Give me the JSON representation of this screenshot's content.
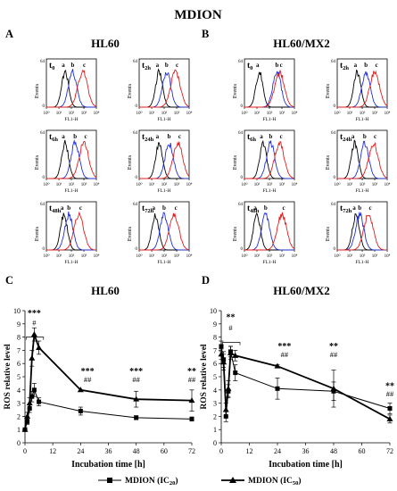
{
  "figure": {
    "title": "MDION",
    "panel_letters": [
      "A",
      "B",
      "C",
      "D"
    ],
    "panel_titles": [
      "HL60",
      "HL60/MX2",
      "HL60",
      "HL60/MX2"
    ],
    "colors": {
      "a": "#000000",
      "b": "#1f2fd6",
      "c": "#e21b1b"
    }
  },
  "chart_data": [
    {
      "id": "A",
      "type": "histogram",
      "title": "HL60",
      "xlabel": "FL1-H",
      "ylabel": "Events",
      "x_scale": "log",
      "x_ticks": [
        "10⁰",
        "10¹",
        "10²",
        "10³",
        "10⁴"
      ],
      "y_ticks": [
        "0",
        "64"
      ],
      "series_labels": [
        "a",
        "b",
        "c"
      ],
      "series_colors": [
        "#000000",
        "#1f2fd6",
        "#e21b1b"
      ],
      "subplots": [
        {
          "timepoint": "t",
          "sub": "0",
          "peaks_log10": [
            1.5,
            2.1,
            2.9
          ]
        },
        {
          "timepoint": "t",
          "sub": "2h",
          "peaks_log10": [
            1.6,
            2.2,
            2.9
          ]
        },
        {
          "timepoint": "t",
          "sub": "6h",
          "peaks_log10": [
            1.5,
            2.3,
            3.0
          ]
        },
        {
          "timepoint": "t",
          "sub": "24h",
          "peaks_log10": [
            1.6,
            2.4,
            3.1
          ]
        },
        {
          "timepoint": "t",
          "sub": "48h",
          "peaks_log10": [
            1.4,
            1.8,
            2.6
          ]
        },
        {
          "timepoint": "t",
          "sub": "72h",
          "peaks_log10": [
            1.3,
            2.0,
            2.8
          ]
        }
      ]
    },
    {
      "id": "B",
      "type": "histogram",
      "title": "HL60/MX2",
      "xlabel": "FL1-H",
      "ylabel": "Events",
      "x_scale": "log",
      "x_ticks": [
        "10⁰",
        "10¹",
        "10²",
        "10³",
        "10⁴"
      ],
      "y_ticks": [
        "0",
        "64"
      ],
      "series_labels": [
        "a",
        "b",
        "c"
      ],
      "series_colors": [
        "#000000",
        "#1f2fd6",
        "#e21b1b"
      ],
      "subplots": [
        {
          "timepoint": "t",
          "sub": "0",
          "peaks_log10": [
            1.2,
            2.6,
            2.8
          ]
        },
        {
          "timepoint": "t",
          "sub": "2h",
          "peaks_log10": [
            1.6,
            2.3,
            3.0
          ]
        },
        {
          "timepoint": "t",
          "sub": "6h",
          "peaks_log10": [
            1.5,
            2.1,
            2.8
          ]
        },
        {
          "timepoint": "t",
          "sub": "24h",
          "peaks_log10": [
            1.4,
            2.2,
            2.9
          ]
        },
        {
          "timepoint": "t",
          "sub": "48h",
          "peaks_log10": [
            1.0,
            1.7,
            3.0
          ]
        },
        {
          "timepoint": "t",
          "sub": "72h",
          "peaks_log10": [
            1.5,
            1.8,
            2.5
          ]
        }
      ]
    },
    {
      "id": "C",
      "type": "line",
      "title": "HL60",
      "xlabel": "Incubation time [h]",
      "ylabel": "ROS relative level",
      "xlim": [
        0,
        72
      ],
      "ylim": [
        0,
        10
      ],
      "x_ticks": [
        0,
        12,
        24,
        36,
        48,
        60,
        72
      ],
      "y_ticks": [
        0,
        1,
        2,
        3,
        4,
        5,
        6,
        7,
        8,
        9,
        10
      ],
      "series": [
        {
          "name": "MDION (IC20)",
          "marker": "square",
          "x": [
            0,
            1,
            2,
            3,
            4,
            6,
            24,
            48,
            72
          ],
          "y": [
            1.0,
            1.6,
            2.6,
            3.5,
            4.0,
            3.1,
            2.4,
            1.9,
            1.8
          ],
          "err": [
            0.0,
            0.2,
            0.3,
            0.4,
            0.5,
            0.3,
            0.3,
            0.15,
            0.15
          ]
        },
        {
          "name": "MDION (IC50)",
          "marker": "triangle",
          "x": [
            0,
            1,
            2,
            3,
            4,
            6,
            24,
            48,
            72
          ],
          "y": [
            1.0,
            2.0,
            3.0,
            6.4,
            8.2,
            7.2,
            4.0,
            3.3,
            3.2
          ],
          "err": [
            0.0,
            0.3,
            0.4,
            0.6,
            0.5,
            0.5,
            0.0,
            0.6,
            0.8
          ]
        }
      ],
      "annotations": [
        {
          "x": 4,
          "text": "***",
          "y": 9.6
        },
        {
          "x": 4,
          "text": "#",
          "y": 8.9
        },
        {
          "x": 27,
          "text": "***",
          "y": 5.2
        },
        {
          "x": 27,
          "text": "##",
          "y": 4.6
        },
        {
          "x": 48,
          "text": "***",
          "y": 5.2
        },
        {
          "x": 48,
          "text": "##",
          "y": 4.6
        },
        {
          "x": 72,
          "text": "**",
          "y": 5.2
        },
        {
          "x": 72,
          "text": "##",
          "y": 4.6
        }
      ]
    },
    {
      "id": "D",
      "type": "line",
      "title": "HL60/MX2",
      "xlabel": "Incubation time [h]",
      "ylabel": "ROS relative level",
      "xlim": [
        0,
        72
      ],
      "ylim": [
        0,
        10
      ],
      "x_ticks": [
        0,
        12,
        24,
        36,
        48,
        60,
        72
      ],
      "y_ticks": [
        0,
        1,
        2,
        3,
        4,
        5,
        6,
        7,
        8,
        9,
        10
      ],
      "series": [
        {
          "name": "MDION (IC20)",
          "marker": "square",
          "x": [
            0,
            1,
            2,
            3,
            4,
            6,
            24,
            48,
            72
          ],
          "y": [
            7.3,
            6.3,
            2.0,
            3.9,
            6.9,
            5.3,
            4.1,
            3.9,
            2.6
          ],
          "err": [
            0.4,
            0.6,
            0.4,
            0.5,
            0.4,
            0.6,
            0.8,
            0.7,
            0.4
          ]
        },
        {
          "name": "MDION (IC50)",
          "marker": "triangle",
          "x": [
            0,
            1,
            2,
            3,
            4,
            6,
            24,
            48,
            72
          ],
          "y": [
            6.7,
            6.1,
            2.5,
            4.1,
            6.8,
            6.6,
            5.8,
            4.1,
            1.8
          ],
          "err": [
            0.4,
            0.6,
            0.5,
            0.6,
            0.5,
            0.4,
            0.1,
            1.4,
            0.3
          ]
        }
      ],
      "annotations": [
        {
          "x": 4,
          "text": "**",
          "y": 9.3
        },
        {
          "x": 4,
          "text": "#",
          "y": 8.5
        },
        {
          "x": 27,
          "text": "***",
          "y": 7.1
        },
        {
          "x": 27,
          "text": "##",
          "y": 6.5
        },
        {
          "x": 48,
          "text": "**",
          "y": 7.1
        },
        {
          "x": 48,
          "text": "##",
          "y": 6.5
        },
        {
          "x": 72,
          "text": "**",
          "y": 4.1
        },
        {
          "x": 72,
          "text": "##",
          "y": 3.5
        }
      ]
    }
  ],
  "legend": [
    {
      "label": "MDION (IC",
      "sub": "20",
      "close": ")",
      "marker": "square"
    },
    {
      "label": "MDION (IC",
      "sub": "50",
      "close": ")",
      "marker": "triangle"
    }
  ]
}
